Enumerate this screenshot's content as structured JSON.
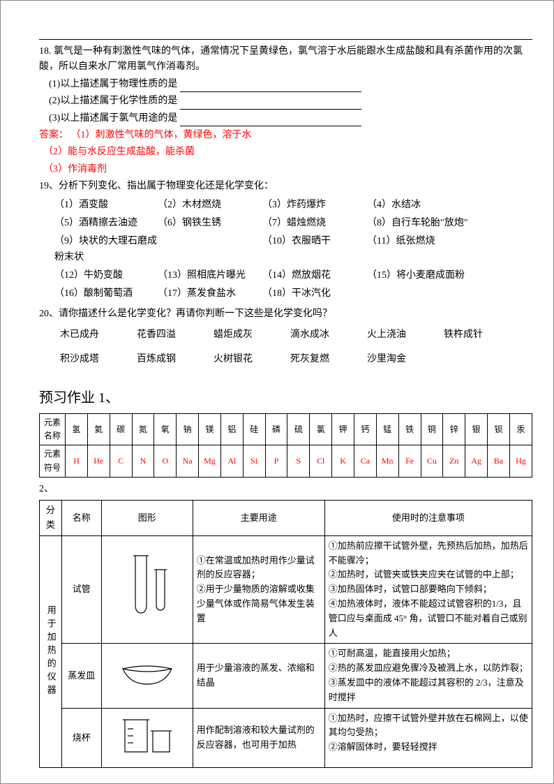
{
  "q18": {
    "intro": "18. 氯气是一种有刺激性气味的气体，通常情况下呈黄绿色，氯气溶于水后能跟水生成盐酸和具有杀菌作用的次氯酸，所以自来水厂常用氯气作消毒剂。",
    "sub1": "(1)以上描述属于物理性质的是",
    "sub2": "(2)以上描述属于化学性质的是",
    "sub3": "(3)以上描述属于氯气用途的是",
    "ans_label": "答案：",
    "ans1": "（1）刺激性气味的气体，黄绿色，溶于水",
    "ans2": "（2）能与水反应生成盐酸，能杀菌",
    "ans3": "（3）作消毒剂"
  },
  "q19": {
    "title": "19、分析下列变化、指出属于物理变化还是化学变化：",
    "items": [
      "（1）酒变酸",
      "（2）木材燃烧",
      "（3）炸药爆炸",
      "（4）水结冰",
      "（5）酒精擦去油迹",
      "（6）钢铁生锈",
      "（7）蜡烛燃烧",
      "（8）自行车轮胎\"放炮\"",
      "（9）块状的大理石磨成粉末状",
      "",
      "（10）衣服晒干",
      "（11）纸张燃烧",
      "（12）牛奶变酸",
      "（13）照相底片曝光",
      "（14）燃放烟花",
      "（15）将小麦磨成面粉",
      "（16）酿制葡萄酒",
      "（17）蒸发食盐水",
      "（18）干冰汽化",
      ""
    ]
  },
  "q20": {
    "title": "20、请你描述什么是化学变化？再请你判断一下这些是化学变化吗？",
    "items": [
      "木已成舟",
      "花香四溢",
      "蜡炬成灰",
      "滴水成冰",
      "火上浇油",
      "铁杵成针",
      "积沙成塔",
      "百炼成钢",
      "火树银花",
      "死灰复燃",
      "沙里淘金"
    ]
  },
  "preview": {
    "title": "预习作业 1、",
    "row_name_label": "元素名称",
    "row_sym_label": "元素符号",
    "names": [
      "氢",
      "氦",
      "碳",
      "氮",
      "氧",
      "钠",
      "镁",
      "铝",
      "硅",
      "磷",
      "硫",
      "氯",
      "钾",
      "钙",
      "锰",
      "铁",
      "铜",
      "锌",
      "银",
      "钡",
      "汞"
    ],
    "symbols": [
      "H",
      "He",
      "C",
      "N",
      "O",
      "Na",
      "Mg",
      "Al",
      "Si",
      "P",
      "S",
      "Cl",
      "K",
      "Ca",
      "Mn",
      "Fe",
      "Cu",
      "Zn",
      "Ag",
      "Ba",
      "Hg"
    ]
  },
  "sub2": "2、",
  "equip": {
    "headers": [
      "分类",
      "名称",
      "图形",
      "主要用途",
      "使用时的注意事项"
    ],
    "category": "用于加热的仪器",
    "rows": [
      {
        "name": "试管",
        "usage": "①在常温或加热时用作少量试剂的反应容器；\n②用于少量物质的溶解或收集少量气体或作简易气体发生装置",
        "notes": "①加热前应擦干试管外壁，先预热后加热，加热后不能骤冷；\n②加热时，试管夹或铁夹应夹在试管的中上部；\n③加热固体时，试管口部要略向下倾斜；\n④加热液体时，液体不能超过试管容积的1/3，且管口应与桌面成 45° 角，试管口不能对着自己或别人"
      },
      {
        "name": "蒸发皿",
        "usage": "用于少量溶液的蒸发、浓缩和结晶",
        "notes": "①可耐高温，能直接用火加热；\n②热的蒸发皿应避免骤冷及被溅上水，以防炸裂；\n③蒸发皿中的液体不能超过其容积的 2/3，注意及时搅拌"
      },
      {
        "name": "烧杯",
        "usage": "用作配制溶液和较大量试剂的反应容器，也可用于加热",
        "notes": "①加热时，应擦干试管外壁并放在石棉网上，以使其均匀受热；\n②溶解固体时，要轻轻搅拌"
      }
    ]
  }
}
